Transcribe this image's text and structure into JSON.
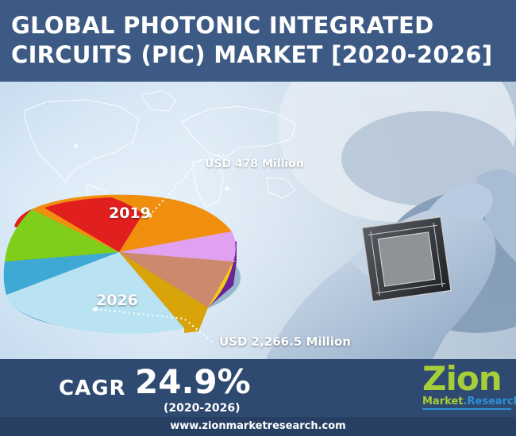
{
  "title": "GLOBAL PHOTONIC INTEGRATED CIRCUITS (PIC) MARKET [2020-2026]",
  "market_2019": {
    "year": "2019",
    "value": "USD 478 Million"
  },
  "market_2026": {
    "year": "2026",
    "value": "USD 2,266.5 Million"
  },
  "cagr": {
    "label": "CAGR",
    "value": "24.9%",
    "period": "(2020-2026)"
  },
  "website": "www.zionmarketresearch.com",
  "logo": {
    "word": "Zion",
    "sub_part1": "Market",
    "sub_part2": ".Research"
  },
  "colors": {
    "header_bg": "#3d5a84",
    "band_bg": "#2e4a70",
    "pie_red": "#e21f1f",
    "pie_orange": "#f08f0e",
    "pie_purple": "#9b3cd4",
    "pie_yellow": "#f6c818",
    "pie_light_blue": "#b9e3f2",
    "pie_blue": "#3fa9d6",
    "pie_green": "#7fcf1a",
    "logo_green": "#a6ce39",
    "logo_blue": "#2e8fd6"
  },
  "icons": [
    "world-map-icon",
    "microchip-icon",
    "gloved-hand-icon",
    "pie-chart-icon"
  ]
}
